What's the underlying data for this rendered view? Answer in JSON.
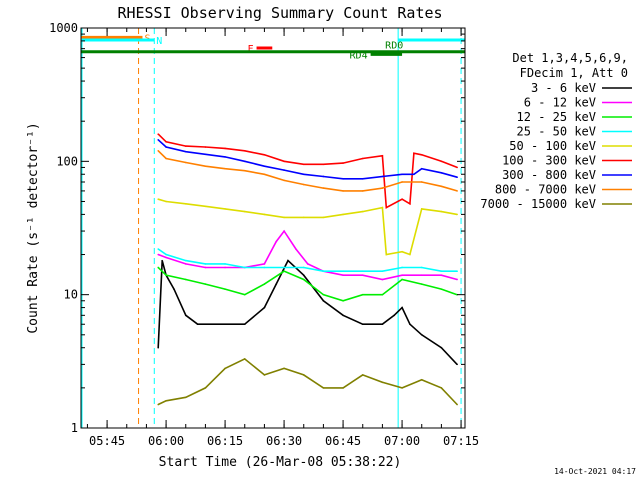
{
  "chart_data": {
    "type": "line",
    "title": "RHESSI Observing Summary Count Rates",
    "xlabel": "Start Time (26-Mar-08 05:38:22)",
    "ylabel": "Count Rate (s⁻¹ detector⁻¹)",
    "yscale": "log",
    "ylim": [
      1,
      1000
    ],
    "xlim_minutes": [
      "05:38",
      "07:16"
    ],
    "x_ticks": [
      "05:45",
      "06:00",
      "06:15",
      "06:30",
      "06:45",
      "07:00",
      "07:15"
    ],
    "y_ticks": [
      "1",
      "10",
      "100",
      "1000"
    ],
    "legend": {
      "header": [
        "Det 1,3,4,5,6,9,",
        "FDecim 1, Att 0"
      ],
      "position": "right"
    },
    "footer_date": "14-Oct-2021 04:17",
    "series": [
      {
        "name": "3 - 6 keV",
        "color": "#000000",
        "x": [
          "05:58",
          "05:59",
          "06:00",
          "06:02",
          "06:05",
          "06:08",
          "06:10",
          "06:15",
          "06:20",
          "06:25",
          "06:28",
          "06:31",
          "06:35",
          "06:40",
          "06:45",
          "06:50",
          "06:55",
          "06:58",
          "07:00",
          "07:02",
          "07:05",
          "07:10",
          "07:14"
        ],
        "values": [
          4,
          18,
          14,
          11,
          7,
          6,
          6,
          6,
          6,
          8,
          12,
          18,
          14,
          9,
          7,
          6,
          6,
          7,
          8,
          6,
          5,
          4,
          3
        ]
      },
      {
        "name": "6 - 12 keV",
        "color": "#ff00ff",
        "x": [
          "05:58",
          "06:00",
          "06:05",
          "06:10",
          "06:15",
          "06:20",
          "06:25",
          "06:28",
          "06:30",
          "06:33",
          "06:36",
          "06:40",
          "06:45",
          "06:50",
          "06:55",
          "07:00",
          "07:05",
          "07:10",
          "07:14"
        ],
        "values": [
          20,
          19,
          17,
          16,
          16,
          16,
          17,
          25,
          30,
          22,
          17,
          15,
          14,
          14,
          13,
          14,
          14,
          14,
          13
        ]
      },
      {
        "name": "12 - 25 keV",
        "color": "#00ee00",
        "x": [
          "05:58",
          "06:00",
          "06:05",
          "06:10",
          "06:15",
          "06:20",
          "06:25",
          "06:30",
          "06:35",
          "06:40",
          "06:45",
          "06:50",
          "06:55",
          "07:00",
          "07:05",
          "07:10",
          "07:14"
        ],
        "values": [
          16,
          14,
          13,
          12,
          11,
          10,
          12,
          15,
          13,
          10,
          9,
          10,
          10,
          13,
          12,
          11,
          10
        ]
      },
      {
        "name": "25 - 50 keV",
        "color": "#00ffff",
        "x": [
          "05:58",
          "06:00",
          "06:05",
          "06:10",
          "06:15",
          "06:20",
          "06:25",
          "06:30",
          "06:35",
          "06:40",
          "06:45",
          "06:50",
          "06:55",
          "07:00",
          "07:05",
          "07:10",
          "07:14"
        ],
        "values": [
          22,
          20,
          18,
          17,
          17,
          16,
          16,
          16,
          16,
          15,
          15,
          15,
          15,
          16,
          16,
          15,
          15
        ]
      },
      {
        "name": "50 - 100 keV",
        "color": "#dddd00",
        "x": [
          "05:58",
          "06:00",
          "06:05",
          "06:10",
          "06:15",
          "06:20",
          "06:25",
          "06:30",
          "06:35",
          "06:40",
          "06:45",
          "06:50",
          "06:55",
          "06:56",
          "07:00",
          "07:02",
          "07:05",
          "07:10",
          "07:14"
        ],
        "values": [
          52,
          50,
          48,
          46,
          44,
          42,
          40,
          38,
          38,
          38,
          40,
          42,
          45,
          20,
          21,
          20,
          44,
          42,
          40
        ]
      },
      {
        "name": "100 - 300 keV",
        "color": "#ff0000",
        "x": [
          "05:58",
          "06:00",
          "06:05",
          "06:10",
          "06:15",
          "06:20",
          "06:25",
          "06:30",
          "06:35",
          "06:40",
          "06:45",
          "06:50",
          "06:55",
          "06:56",
          "07:00",
          "07:02",
          "07:03",
          "07:05",
          "07:10",
          "07:14"
        ],
        "values": [
          160,
          140,
          130,
          128,
          125,
          120,
          112,
          100,
          95,
          95,
          97,
          105,
          110,
          45,
          52,
          48,
          115,
          112,
          100,
          90
        ]
      },
      {
        "name": "300 - 800 keV",
        "color": "#0000ff",
        "x": [
          "05:58",
          "06:00",
          "06:05",
          "06:10",
          "06:15",
          "06:20",
          "06:25",
          "06:30",
          "06:35",
          "06:40",
          "06:45",
          "06:50",
          "06:55",
          "07:00",
          "07:03",
          "07:05",
          "07:10",
          "07:14"
        ],
        "values": [
          145,
          128,
          118,
          113,
          108,
          100,
          92,
          86,
          80,
          77,
          74,
          74,
          77,
          80,
          80,
          88,
          82,
          76
        ]
      },
      {
        "name": "800 - 7000 keV",
        "color": "#ff8000",
        "x": [
          "05:58",
          "06:00",
          "06:05",
          "06:10",
          "06:15",
          "06:20",
          "06:25",
          "06:30",
          "06:35",
          "06:40",
          "06:45",
          "06:50",
          "06:55",
          "07:00",
          "07:05",
          "07:10",
          "07:14"
        ],
        "values": [
          120,
          105,
          98,
          92,
          88,
          85,
          80,
          72,
          67,
          63,
          60,
          60,
          63,
          70,
          70,
          65,
          60
        ]
      },
      {
        "name": "7000 - 15000 keV",
        "color": "#808000",
        "x": [
          "05:58",
          "06:00",
          "06:05",
          "06:10",
          "06:15",
          "06:20",
          "06:25",
          "06:30",
          "06:35",
          "06:40",
          "06:45",
          "06:50",
          "06:55",
          "07:00",
          "07:05",
          "07:10",
          "07:14"
        ],
        "values": [
          1.5,
          1.6,
          1.7,
          2.0,
          2.8,
          3.3,
          2.5,
          2.8,
          2.5,
          2.0,
          2.0,
          2.5,
          2.2,
          2.0,
          2.3,
          2.0,
          1.5
        ]
      }
    ],
    "vertical_markers": [
      {
        "time": "05:38",
        "color": "#00ffff",
        "style": "solid"
      },
      {
        "time": "05:53",
        "color": "#ff8000",
        "style": "dashed"
      },
      {
        "time": "05:57",
        "color": "#00ffff",
        "style": "dashed"
      },
      {
        "time": "06:59",
        "color": "#00ffff",
        "style": "solid"
      },
      {
        "time": "07:15",
        "color": "#00ffff",
        "style": "dashed"
      }
    ],
    "flag_bars": [
      {
        "label": "S",
        "color": "#ff8000",
        "start": "05:38",
        "end": "05:54",
        "level": 1.0
      },
      {
        "label": "N",
        "color": "#00ffff",
        "start": "05:38",
        "end": "05:57",
        "level": 0.75
      },
      {
        "label": "",
        "color": "#00ffff",
        "start": "06:59",
        "end": "07:16",
        "level": 0.75
      },
      {
        "label": "F",
        "color": "#ff0000",
        "start": "06:23",
        "end": "06:27",
        "level": 0.0
      },
      {
        "label": "RD0",
        "color": "#008000",
        "start": "05:38",
        "end": "07:16",
        "level": -0.35
      },
      {
        "label": "RD4",
        "color": "#008000",
        "start": "06:52",
        "end": "07:00",
        "level": -0.6
      }
    ]
  }
}
